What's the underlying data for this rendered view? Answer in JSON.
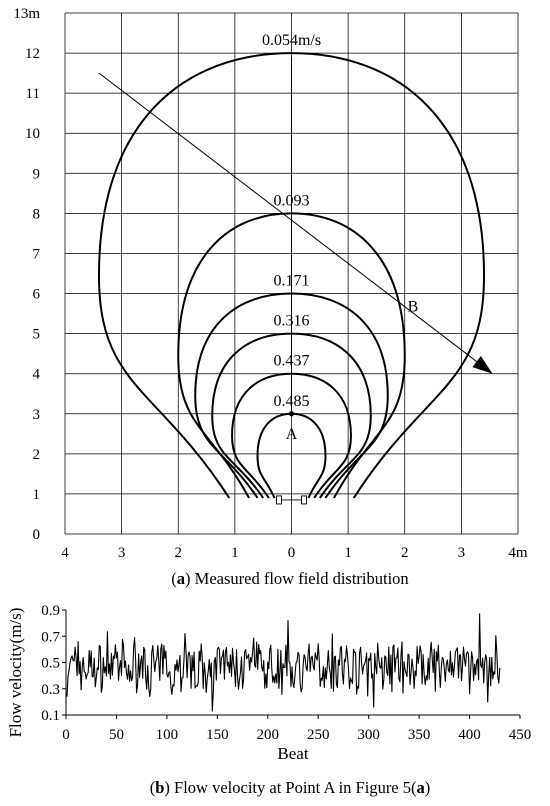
{
  "panel_a": {
    "caption_label": "a",
    "caption_text": "Measured flow field distribution",
    "point_label": "A",
    "line_label": "B"
  },
  "panel_b": {
    "caption_label": "b",
    "caption_text": "Flow velocity at Point A in Figure 5(",
    "caption_label_inner": "a",
    "caption_close": ")"
  },
  "chart_data": [
    {
      "type": "contour",
      "x_tick_labels": [
        "4",
        "3",
        "2",
        "1",
        "0",
        "1",
        "2",
        "3",
        "4m"
      ],
      "y_tick_labels": [
        "0",
        "1",
        "2",
        "3",
        "4",
        "5",
        "6",
        "7",
        "8",
        "9",
        "10",
        "11",
        "12",
        "13m"
      ],
      "xlim": [
        -4,
        4
      ],
      "ylim": [
        0,
        13
      ],
      "grid": true,
      "contours": [
        {
          "label": "0.054m/s",
          "value": 0.054,
          "top_y": 12.0,
          "half_width": 3.4,
          "bottom_half_gap": 1.1,
          "bottom_y": 0.9
        },
        {
          "label": "0.093",
          "value": 0.093,
          "top_y": 8.0,
          "half_width": 2.0,
          "bottom_half_gap": 0.75,
          "bottom_y": 0.9
        },
        {
          "label": "0.171",
          "value": 0.171,
          "top_y": 6.0,
          "half_width": 1.7,
          "bottom_half_gap": 0.6,
          "bottom_y": 0.9
        },
        {
          "label": "0.316",
          "value": 0.316,
          "top_y": 5.0,
          "half_width": 1.4,
          "bottom_half_gap": 0.5,
          "bottom_y": 0.9
        },
        {
          "label": "0.437",
          "value": 0.437,
          "top_y": 4.0,
          "half_width": 1.05,
          "bottom_half_gap": 0.4,
          "bottom_y": 0.9
        },
        {
          "label": "0.485",
          "value": 0.485,
          "top_y": 3.0,
          "half_width": 0.6,
          "bottom_half_gap": 0.3,
          "bottom_y": 0.9
        }
      ],
      "point_A": {
        "x": 0,
        "y": 3.0
      },
      "line_B": {
        "from": [
          -3.4,
          11.5
        ],
        "to": [
          3.55,
          4.0
        ]
      },
      "device_marker": {
        "x": 0,
        "y": 0.85
      }
    },
    {
      "type": "line",
      "xlabel": "Beat",
      "ylabel": "Flow velocity(m/s)",
      "xlim": [
        0,
        450
      ],
      "ylim": [
        0.1,
        0.9
      ],
      "x_ticks": [
        "0",
        "50",
        "100",
        "150",
        "200",
        "250",
        "300",
        "350",
        "400",
        "450"
      ],
      "y_ticks": [
        "0.1",
        "0.3",
        "0.5",
        "0.7",
        "0.9"
      ],
      "grid": false,
      "n_points": 430,
      "mean": 0.46,
      "x_start": 1,
      "x_end": 430,
      "notable_points": [
        {
          "x": 1,
          "y": 0.24
        },
        {
          "x": 12,
          "y": 0.66
        },
        {
          "x": 118,
          "y": 0.72
        },
        {
          "x": 145,
          "y": 0.13
        },
        {
          "x": 220,
          "y": 0.82
        },
        {
          "x": 305,
          "y": 0.16
        },
        {
          "x": 410,
          "y": 0.87
        },
        {
          "x": 418,
          "y": 0.2
        },
        {
          "x": 430,
          "y": 0.46
        }
      ]
    }
  ]
}
